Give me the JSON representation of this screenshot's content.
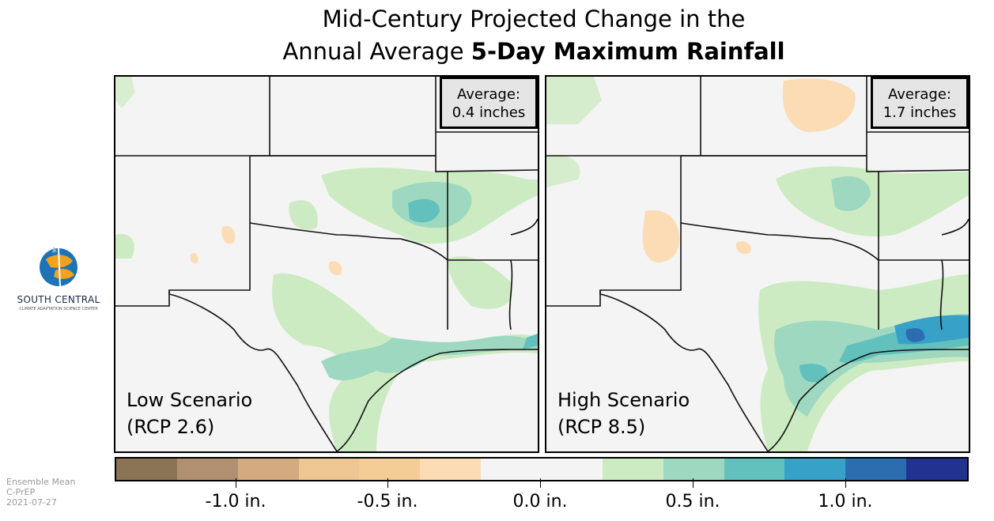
{
  "title": {
    "line1": "Mid-Century Projected Change in the",
    "line2_plain": "Annual Average ",
    "line2_bold": "5-Day Maximum Rainfall"
  },
  "panels": [
    {
      "scenario_line1": "Low Scenario",
      "scenario_line2": "(RCP 2.6)",
      "average_label": "Average:",
      "average_value": "0.4 inches"
    },
    {
      "scenario_line1": "High Scenario",
      "scenario_line2": "(RCP 8.5)",
      "average_label": "Average:",
      "average_value": "1.7 inches"
    }
  ],
  "logo": {
    "name": "SOUTH CENTRAL",
    "subtitle": "CLIMATE ADAPTATION SCIENCE CENTER"
  },
  "metadata": {
    "line1": "Ensemble Mean",
    "line2": "C-PrEP",
    "line3": "2021-07-27"
  },
  "colorbar": {
    "colors": [
      "#8b7355",
      "#b09070",
      "#d4aa80",
      "#edc694",
      "#f4cc96",
      "#fbdcb4",
      "#f4f4f4",
      "#f4f4f4",
      "#cdebc2",
      "#9ed8c0",
      "#62c1bd",
      "#38a1c8",
      "#2c6db0",
      "#22338f"
    ],
    "ticks": [
      {
        "label": "-1.0 in."
      },
      {
        "label": "-0.5 in."
      },
      {
        "label": "0.0 in."
      },
      {
        "label": "0.5 in."
      },
      {
        "label": "1.0 in."
      }
    ]
  }
}
